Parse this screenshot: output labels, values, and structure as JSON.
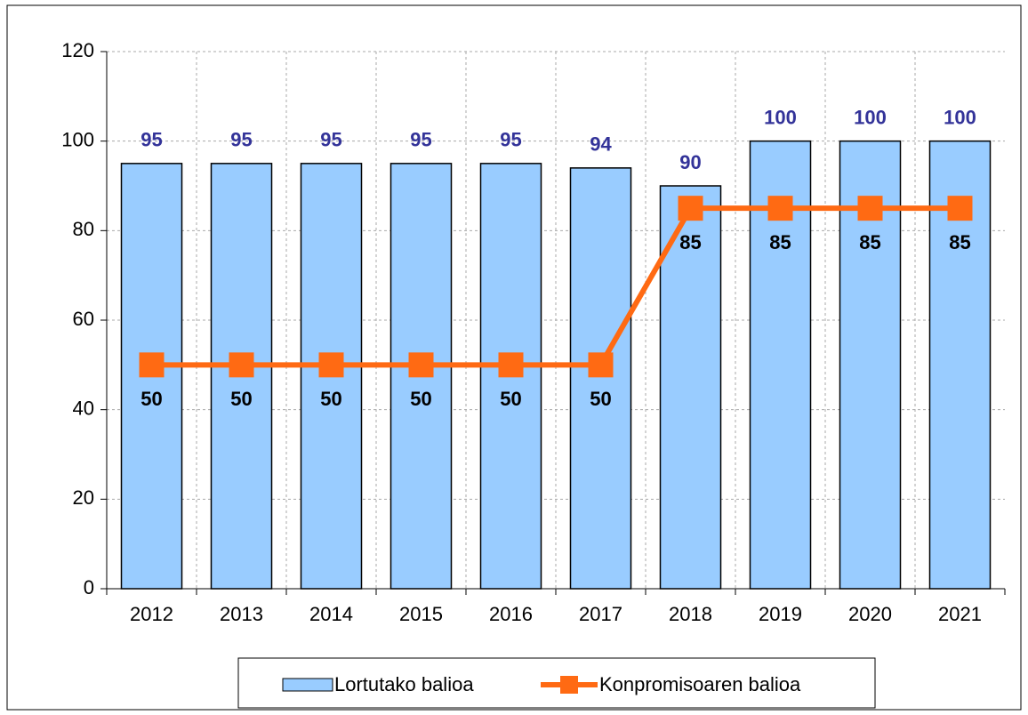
{
  "chart_data": {
    "type": "combo",
    "categories": [
      "2012",
      "2013",
      "2014",
      "2015",
      "2016",
      "2017",
      "2018",
      "2019",
      "2020",
      "2021"
    ],
    "series": [
      {
        "name": "Lortutako balioa",
        "type": "bar",
        "color": "#99ccff",
        "label_color": "#333399",
        "values": [
          95,
          95,
          95,
          95,
          95,
          94,
          90,
          100,
          100,
          100
        ]
      },
      {
        "name": "Konpromisoaren balioa",
        "type": "line",
        "color": "#ff6a13",
        "label_color": "#000000",
        "values": [
          50,
          50,
          50,
          50,
          50,
          50,
          85,
          85,
          85,
          85
        ]
      }
    ],
    "ylim": [
      0,
      120
    ],
    "yticks": [
      0,
      20,
      40,
      60,
      80,
      100,
      120
    ],
    "grid": true,
    "legend": "bottom"
  }
}
